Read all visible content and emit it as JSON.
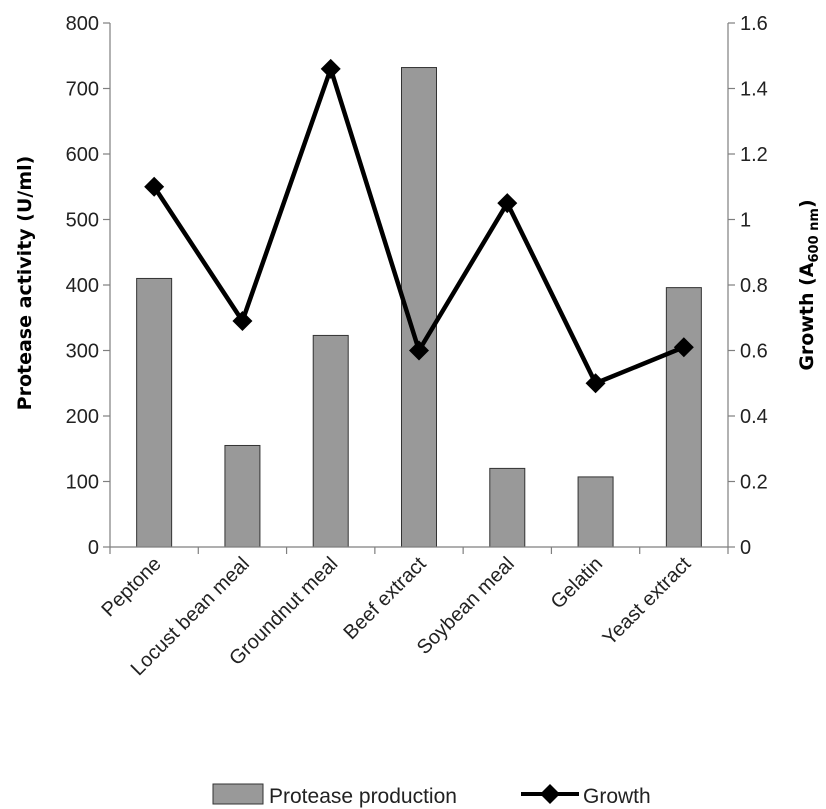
{
  "chart_data": {
    "type": "bar",
    "title": "",
    "categories": [
      "Peptone",
      "Locust bean meal",
      "Groundnut meal",
      "Beef extract",
      "Soybean meal",
      "Gelatin",
      "Yeast extract"
    ],
    "series": [
      {
        "name": "Protease production",
        "type": "bar",
        "axis": "left",
        "color": "#999999",
        "values": [
          410,
          155,
          323,
          732,
          120,
          107,
          396
        ]
      },
      {
        "name": "Growth",
        "type": "line",
        "axis": "right",
        "color": "#000000",
        "marker": "diamond",
        "values": [
          1.1,
          0.69,
          1.46,
          0.6,
          1.05,
          0.5,
          0.61
        ]
      }
    ],
    "y_left": {
      "label": "Protease activity (U/ml)",
      "ylim": [
        0,
        800
      ],
      "ticks": [
        "0",
        "100",
        "200",
        "300",
        "400",
        "500",
        "600",
        "700",
        "800"
      ]
    },
    "y_right": {
      "label_main": "Growth (A",
      "label_sub": "600 nm",
      "label_end": ")",
      "ylim": [
        0,
        1.6
      ],
      "ticks": [
        "0",
        "0.2",
        "0.4",
        "0.6",
        "0.8",
        "1",
        "1.2",
        "1.4",
        "1.6"
      ]
    },
    "grid": false,
    "legend_position": "bottom"
  }
}
